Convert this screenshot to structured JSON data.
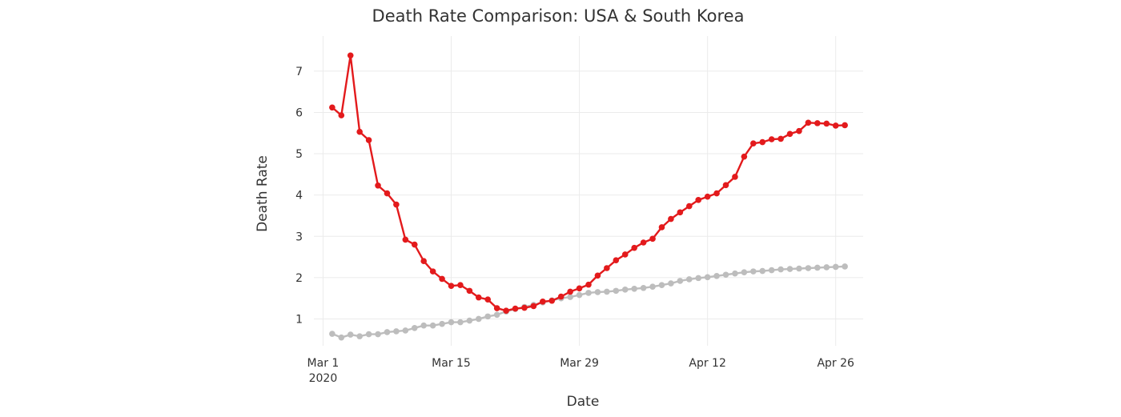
{
  "chart_data": {
    "type": "line",
    "title": "Death Rate Comparison: USA & South Korea",
    "xlabel": "Date",
    "ylabel": "Death Rate",
    "x_ticks": [
      {
        "date": "2020-03-01",
        "label": "Mar 1",
        "sublabel": "2020"
      },
      {
        "date": "2020-03-15",
        "label": "Mar 15",
        "sublabel": ""
      },
      {
        "date": "2020-03-29",
        "label": "Mar 29",
        "sublabel": ""
      },
      {
        "date": "2020-04-12",
        "label": "Apr 12",
        "sublabel": ""
      },
      {
        "date": "2020-04-26",
        "label": "Apr 26",
        "sublabel": ""
      }
    ],
    "y_ticks": [
      1,
      2,
      3,
      4,
      5,
      6,
      7
    ],
    "xlim": [
      "2020-02-29",
      "2020-04-29"
    ],
    "ylim": [
      0.35,
      7.85
    ],
    "grid": true,
    "legend": "none",
    "x_start": "2020-03-02",
    "x_end": "2020-04-27",
    "series": [
      {
        "color": "#e31a1c",
        "values": [
          6.12,
          5.93,
          7.38,
          5.53,
          5.33,
          4.23,
          4.04,
          3.77,
          2.92,
          2.8,
          2.4,
          2.15,
          1.97,
          1.8,
          1.82,
          1.68,
          1.52,
          1.47,
          1.26,
          1.2,
          1.25,
          1.27,
          1.31,
          1.42,
          1.44,
          1.54,
          1.66,
          1.74,
          1.83,
          2.05,
          2.23,
          2.42,
          2.56,
          2.72,
          2.85,
          2.94,
          3.22,
          3.42,
          3.58,
          3.73,
          3.88,
          3.96,
          4.04,
          4.24,
          4.44,
          4.93,
          5.25,
          5.28,
          5.35,
          5.36,
          5.48,
          5.55,
          5.75,
          5.74,
          5.73,
          5.68,
          5.69
        ]
      },
      {
        "color": "#bdbdbd",
        "values": [
          0.64,
          0.55,
          0.62,
          0.58,
          0.63,
          0.63,
          0.68,
          0.7,
          0.72,
          0.78,
          0.84,
          0.84,
          0.88,
          0.92,
          0.92,
          0.96,
          1.0,
          1.06,
          1.1,
          1.18,
          1.24,
          1.29,
          1.34,
          1.4,
          1.45,
          1.5,
          1.53,
          1.58,
          1.63,
          1.65,
          1.66,
          1.68,
          1.71,
          1.73,
          1.75,
          1.78,
          1.82,
          1.86,
          1.92,
          1.96,
          1.99,
          2.01,
          2.04,
          2.07,
          2.1,
          2.13,
          2.15,
          2.16,
          2.18,
          2.2,
          2.21,
          2.22,
          2.23,
          2.24,
          2.25,
          2.26,
          2.27
        ]
      }
    ]
  }
}
